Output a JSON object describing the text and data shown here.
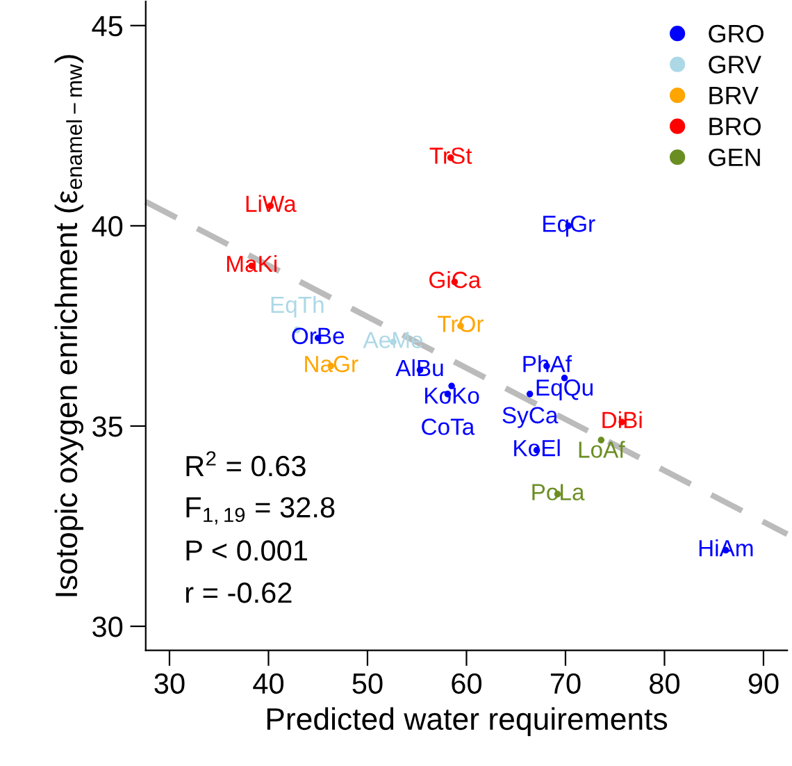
{
  "chart_data": {
    "type": "scatter",
    "xlabel": "Predicted water requirements",
    "ylabel": "Isotopic oxygen enrichment (ε$_{enamel−mw}$)",
    "xlim": [
      27.6,
      92.4
    ],
    "ylim": [
      29.4,
      45.6
    ],
    "xticks": [
      30,
      40,
      50,
      60,
      70,
      80,
      90
    ],
    "yticks": [
      30,
      35,
      40,
      45
    ],
    "marker": "circle",
    "legend": "top right",
    "grid": false,
    "series": [
      {
        "name": "GRO",
        "color": "#0000ff",
        "x": [
          70.3,
          45.0,
          55.3,
          68.1,
          69.9,
          58.5,
          58.1,
          66.4,
          67.1,
          86.2
        ],
        "values": [
          40.0,
          37.2,
          36.4,
          36.5,
          36.2,
          36.0,
          35.8,
          35.8,
          34.4,
          31.9
        ],
        "value_labels": [
          "EqGr",
          "OrBe",
          "AlBu",
          "PhAf",
          "EqQu",
          "KoKo",
          "CoTa",
          "SyCa",
          "KoEl",
          "HiAm"
        ]
      },
      {
        "name": "GRV",
        "color": "#add8e6",
        "x": [
          42.9,
          52.6
        ],
        "values": [
          37.4,
          37.1
        ],
        "value_labels": [
          "EqTh",
          "AeMe"
        ]
      },
      {
        "name": "BRV",
        "color": "#ffa500",
        "x": [
          59.4,
          46.3
        ],
        "values": [
          37.5,
          36.5
        ],
        "value_labels": [
          "TrOr",
          "NaGr"
        ]
      },
      {
        "name": "BRO",
        "color": "#ff0000",
        "x": [
          58.4,
          40.2,
          38.3,
          58.8,
          75.7
        ],
        "values": [
          41.7,
          40.5,
          39.0,
          38.6,
          35.1
        ],
        "value_labels": [
          "TrSt",
          "LiWa",
          "MaKi",
          "GiCa",
          "DiBi"
        ]
      },
      {
        "name": "GEN",
        "color": "#6b8e23",
        "x": [
          73.6,
          69.2
        ],
        "values": [
          34.65,
          33.3
        ],
        "value_labels": [
          "LoAf",
          "PoLa"
        ]
      },
      {
        "type": "line",
        "color": "#bbbbbb",
        "line_style": "dashed",
        "marker": "none",
        "x": [
          27.6,
          92.4
        ],
        "values": [
          40.6,
          32.3
        ]
      }
    ],
    "annotations": [
      "R$^{2}$ = 0.63",
      "F$_{1,19}$ = 32.8",
      "P < 0.001",
      "r = -0.62"
    ]
  }
}
